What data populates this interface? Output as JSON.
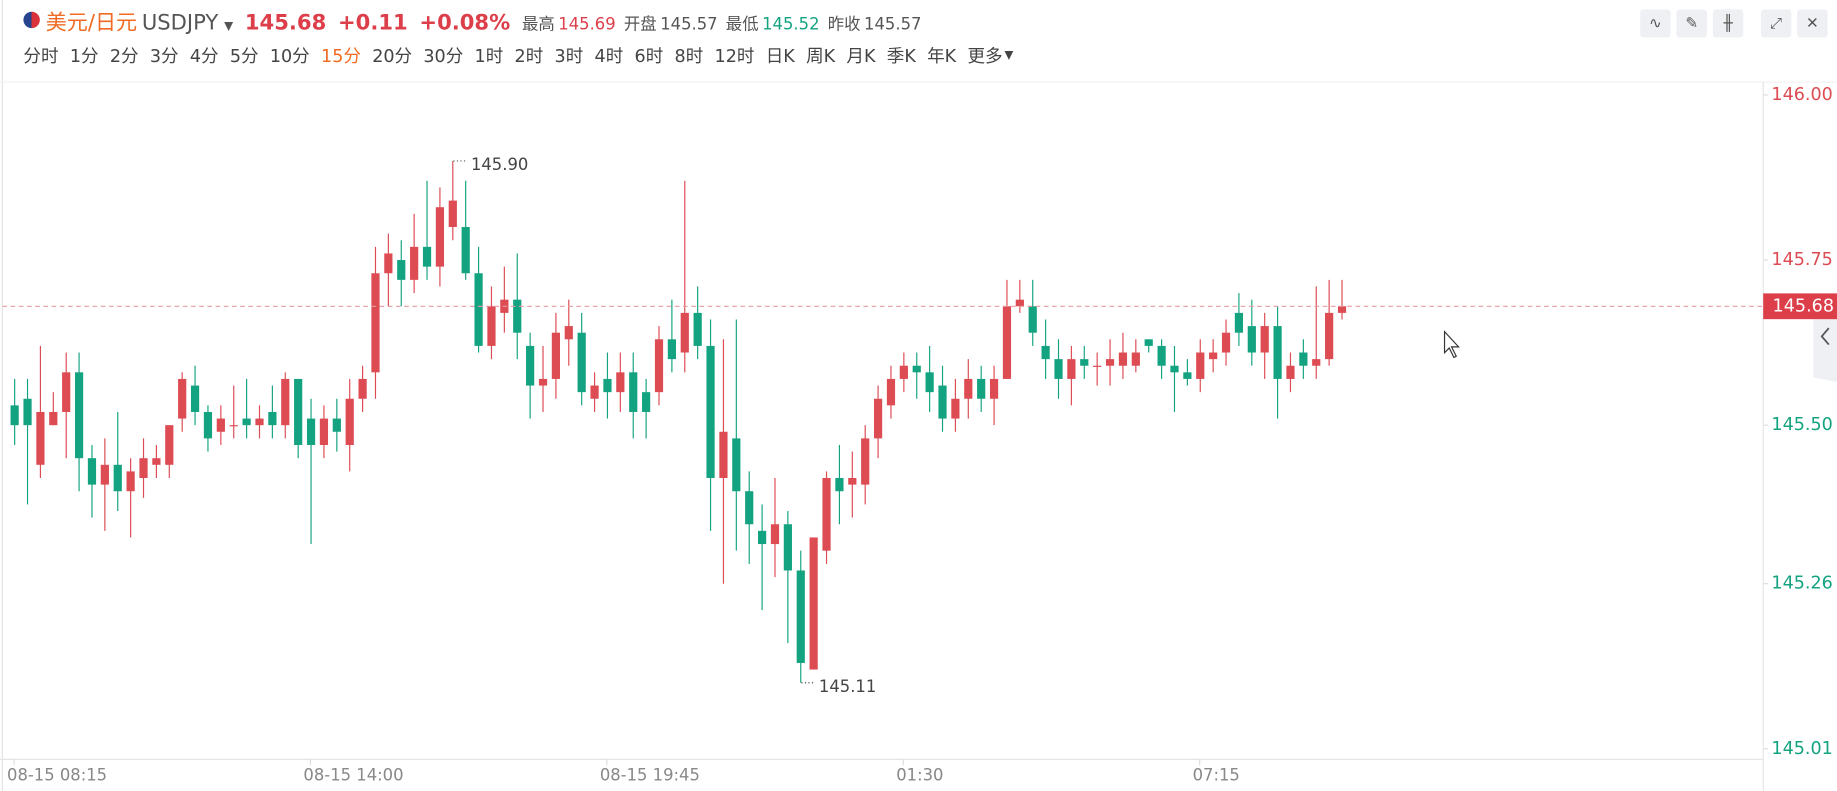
{
  "header": {
    "name": "美元/日元",
    "symbol": "USDJPY",
    "price": "145.68",
    "change": "+0.11",
    "change_pct": "+0.08%",
    "stats": [
      {
        "label": "最高",
        "value": "145.69"
      },
      {
        "label": "开盘",
        "value": "145.57"
      },
      {
        "label": "最低",
        "value": "145.52"
      },
      {
        "label": "昨收",
        "value": "145.57"
      }
    ]
  },
  "periods": [
    "分时",
    "1分",
    "2分",
    "3分",
    "4分",
    "5分",
    "10分",
    "15分",
    "20分",
    "30分",
    "1时",
    "2时",
    "3时",
    "4时",
    "6时",
    "8时",
    "12时",
    "日K",
    "周K",
    "月K",
    "季K",
    "年K",
    "更多"
  ],
  "active_period": 7,
  "chart_data": {
    "type": "candlestick",
    "up_color": "#dd4b53",
    "down_color": "#14a380",
    "categories": [
      "08-15 08:15",
      null,
      null,
      null,
      null,
      null,
      null,
      null,
      null,
      null,
      null,
      null,
      null,
      null,
      null,
      null,
      null,
      null,
      null,
      null,
      null,
      null,
      null,
      "08-15 14:00",
      null,
      null,
      null,
      null,
      null,
      null,
      null,
      null,
      null,
      null,
      null,
      null,
      null,
      null,
      null,
      null,
      null,
      null,
      null,
      null,
      null,
      null,
      "08-15 19:45",
      null,
      null,
      null,
      null,
      null,
      null,
      null,
      null,
      null,
      null,
      null,
      null,
      null,
      null,
      null,
      null,
      null,
      null,
      null,
      null,
      null,
      null,
      "01:30",
      null,
      null,
      null,
      null,
      null,
      null,
      null,
      null,
      null,
      null,
      null,
      null,
      null,
      null,
      null,
      null,
      null,
      null,
      null,
      null,
      null,
      null,
      "07:15",
      null,
      null,
      null,
      null,
      null,
      null,
      null,
      null,
      null,
      null,
      null
    ],
    "open": [
      145.53,
      145.54,
      145.44,
      145.5,
      145.52,
      145.58,
      145.45,
      145.41,
      145.44,
      145.4,
      145.42,
      145.44,
      145.44,
      145.51,
      145.56,
      145.52,
      145.49,
      145.5,
      145.51,
      145.5,
      145.52,
      145.5,
      145.57,
      145.51,
      145.47,
      145.51,
      145.47,
      145.54,
      145.58,
      145.73,
      145.75,
      145.72,
      145.77,
      145.74,
      145.8,
      145.8,
      145.73,
      145.62,
      145.67,
      145.69,
      145.62,
      145.56,
      145.57,
      145.63,
      145.64,
      145.54,
      145.57,
      145.55,
      145.58,
      145.55,
      145.55,
      145.63,
      145.61,
      145.67,
      145.62,
      145.42,
      145.48,
      145.4,
      145.34,
      145.32,
      145.35,
      145.28,
      145.13,
      145.31,
      145.42,
      145.41,
      145.41,
      145.48,
      145.53,
      145.57,
      145.59,
      145.58,
      145.56,
      145.51,
      145.54,
      145.57,
      145.54,
      145.57,
      145.68,
      145.68,
      145.62,
      145.6,
      145.57,
      145.6,
      145.59,
      145.59,
      145.59,
      145.59,
      145.63,
      145.62,
      145.59,
      145.58,
      145.57,
      145.6,
      145.61,
      145.67,
      145.65,
      145.61,
      145.65,
      145.57,
      145.61,
      145.59,
      145.6,
      145.67
    ],
    "high": [
      145.57,
      145.57,
      145.62,
      145.55,
      145.61,
      145.61,
      145.47,
      145.48,
      145.52,
      145.45,
      145.48,
      145.47,
      145.5,
      145.58,
      145.59,
      145.53,
      145.53,
      145.56,
      145.57,
      145.53,
      145.56,
      145.58,
      145.57,
      145.54,
      145.53,
      145.54,
      145.57,
      145.59,
      145.77,
      145.79,
      145.78,
      145.82,
      145.87,
      145.86,
      145.9,
      145.87,
      145.77,
      145.71,
      145.74,
      145.76,
      145.64,
      145.62,
      145.67,
      145.69,
      145.67,
      145.58,
      145.61,
      145.61,
      145.61,
      145.57,
      145.65,
      145.69,
      145.87,
      145.71,
      145.66,
      145.63,
      145.66,
      145.43,
      145.38,
      145.42,
      145.37,
      145.31,
      145.33,
      145.43,
      145.47,
      145.46,
      145.5,
      145.56,
      145.59,
      145.61,
      145.61,
      145.62,
      145.59,
      145.57,
      145.6,
      145.59,
      145.59,
      145.72,
      145.72,
      145.72,
      145.66,
      145.63,
      145.62,
      145.62,
      145.61,
      145.63,
      145.64,
      145.63,
      145.63,
      145.63,
      145.62,
      145.6,
      145.63,
      145.63,
      145.66,
      145.7,
      145.69,
      145.67,
      145.68,
      145.61,
      145.63,
      145.71,
      145.72,
      145.72
    ],
    "low": [
      145.47,
      145.38,
      145.42,
      145.5,
      145.45,
      145.4,
      145.36,
      145.34,
      145.37,
      145.33,
      145.39,
      145.42,
      145.42,
      145.49,
      145.5,
      145.46,
      145.47,
      145.48,
      145.48,
      145.48,
      145.48,
      145.48,
      145.45,
      145.32,
      145.45,
      145.46,
      145.43,
      145.52,
      145.54,
      145.68,
      145.68,
      145.7,
      145.72,
      145.71,
      145.78,
      145.72,
      145.61,
      145.6,
      145.64,
      145.6,
      145.51,
      145.52,
      145.54,
      145.59,
      145.53,
      145.52,
      145.51,
      145.52,
      145.48,
      145.48,
      145.53,
      145.58,
      145.58,
      145.6,
      145.34,
      145.26,
      145.31,
      145.29,
      145.22,
      145.27,
      145.17,
      145.11,
      145.13,
      145.29,
      145.35,
      145.36,
      145.38,
      145.45,
      145.51,
      145.55,
      145.54,
      145.52,
      145.49,
      145.49,
      145.51,
      145.52,
      145.5,
      145.57,
      145.67,
      145.62,
      145.57,
      145.54,
      145.53,
      145.57,
      145.56,
      145.56,
      145.57,
      145.58,
      145.61,
      145.57,
      145.52,
      145.56,
      145.55,
      145.58,
      145.59,
      145.62,
      145.59,
      145.57,
      145.51,
      145.55,
      145.57,
      145.57,
      145.59,
      145.66
    ],
    "close": [
      145.5,
      145.5,
      145.52,
      145.52,
      145.58,
      145.45,
      145.41,
      145.44,
      145.4,
      145.43,
      145.45,
      145.45,
      145.5,
      145.57,
      145.52,
      145.48,
      145.51,
      145.5,
      145.5,
      145.51,
      145.5,
      145.57,
      145.47,
      145.47,
      145.51,
      145.49,
      145.54,
      145.57,
      145.73,
      145.76,
      145.72,
      145.77,
      145.74,
      145.83,
      145.84,
      145.73,
      145.62,
      145.68,
      145.69,
      145.64,
      145.56,
      145.57,
      145.64,
      145.65,
      145.55,
      145.56,
      145.55,
      145.58,
      145.52,
      145.52,
      145.63,
      145.6,
      145.67,
      145.62,
      145.42,
      145.49,
      145.4,
      145.35,
      145.32,
      145.35,
      145.28,
      145.14,
      145.33,
      145.42,
      145.4,
      145.42,
      145.48,
      145.54,
      145.57,
      145.59,
      145.58,
      145.55,
      145.51,
      145.54,
      145.57,
      145.54,
      145.57,
      145.68,
      145.69,
      145.64,
      145.6,
      145.57,
      145.6,
      145.59,
      145.59,
      145.6,
      145.61,
      145.61,
      145.62,
      145.59,
      145.58,
      145.57,
      145.61,
      145.61,
      145.64,
      145.64,
      145.61,
      145.65,
      145.57,
      145.59,
      145.59,
      145.6,
      145.67,
      145.68
    ],
    "ylim": [
      145.01,
      146.0
    ],
    "yticks": [
      {
        "value": 146.0,
        "label": "146.00"
      },
      {
        "value": 145.75,
        "label": "145.75"
      },
      {
        "value": 145.5,
        "label": "145.50"
      },
      {
        "value": 145.26,
        "label": "145.26"
      },
      {
        "value": 145.01,
        "label": "145.01"
      }
    ],
    "last": {
      "value": 145.68,
      "label": "145.68"
    },
    "annotations": [
      {
        "value": 145.9,
        "label": "145.90"
      },
      {
        "value": 145.11,
        "label": "145.11"
      }
    ]
  }
}
